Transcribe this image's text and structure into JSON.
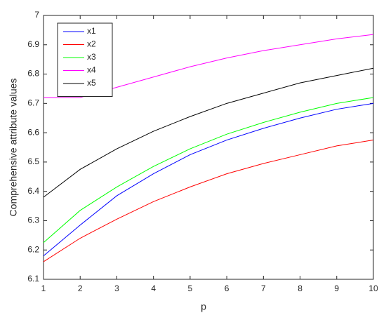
{
  "chart_data": {
    "type": "line",
    "x": [
      1,
      2,
      3,
      4,
      5,
      6,
      7,
      8,
      9,
      10
    ],
    "xlabel": "p",
    "ylabel": "Comprehensive attribute values",
    "xlim": [
      1,
      10
    ],
    "xticks": [
      1,
      2,
      3,
      4,
      5,
      6,
      7,
      8,
      9,
      10
    ],
    "ylim": [
      6.1,
      7
    ],
    "yticks": [
      6.1,
      6.2,
      6.3,
      6.4,
      6.5,
      6.6,
      6.7,
      6.8,
      6.9,
      7
    ],
    "legend": "northwest",
    "series": [
      {
        "name": "x1",
        "color": "#0000ff",
        "values": [
          6.18,
          6.285,
          6.385,
          6.46,
          6.525,
          6.575,
          6.615,
          6.65,
          6.68,
          6.7
        ]
      },
      {
        "name": "x2",
        "color": "#ff0000",
        "values": [
          6.16,
          6.24,
          6.305,
          6.365,
          6.415,
          6.46,
          6.495,
          6.525,
          6.555,
          6.575
        ]
      },
      {
        "name": "x3",
        "color": "#00ff00",
        "values": [
          6.225,
          6.335,
          6.415,
          6.485,
          6.545,
          6.595,
          6.635,
          6.67,
          6.7,
          6.72
        ]
      },
      {
        "name": "x4",
        "color": "#ff00ff",
        "values": [
          6.72,
          6.72,
          6.755,
          6.79,
          6.825,
          6.855,
          6.88,
          6.9,
          6.92,
          6.935
        ]
      },
      {
        "name": "x5",
        "color": "#000000",
        "values": [
          6.38,
          6.475,
          6.545,
          6.605,
          6.655,
          6.7,
          6.735,
          6.77,
          6.795,
          6.82
        ]
      }
    ]
  }
}
